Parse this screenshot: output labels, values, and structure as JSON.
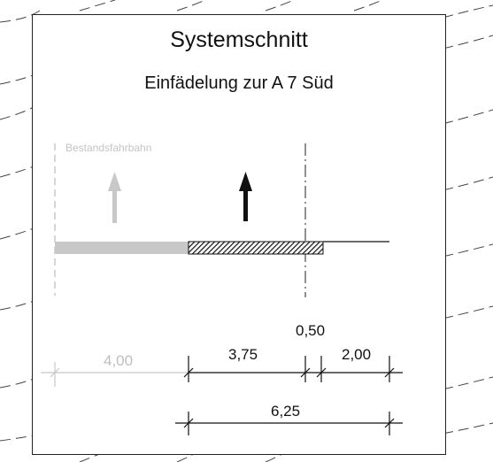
{
  "title": "Systemschnitt",
  "subtitle": "Einfädelung zur A 7 Süd",
  "existing_lane_label": "Bestandsfahrbahn",
  "dimensions": {
    "existing_width": "4,00",
    "new_lane_width": "3,75",
    "median_offset": "0,50",
    "shoulder_width": "2,00",
    "total_width": "6,25"
  },
  "colors": {
    "existing": "#c8c8c8",
    "new": "#111111",
    "frame": "#222222"
  }
}
